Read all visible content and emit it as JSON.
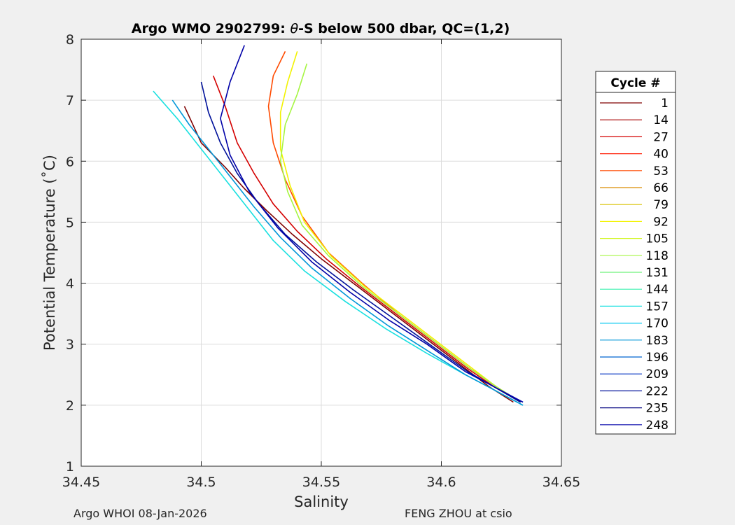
{
  "chart_data": {
    "type": "line",
    "title_prefix": "Argo WMO 2902799: ",
    "title_symbol": "θ",
    "title_suffix": "-S below 500 dbar,  QC=(1,2)",
    "xlabel": "Salinity",
    "ylabel": "Potential Temperature (˚C)",
    "xlim": [
      34.45,
      34.65
    ],
    "ylim": [
      1,
      8
    ],
    "xticks": [
      34.45,
      34.5,
      34.55,
      34.6,
      34.65
    ],
    "xtick_labels": [
      "34.45",
      "34.5",
      "34.55",
      "34.6",
      "34.65"
    ],
    "yticks": [
      1,
      2,
      3,
      4,
      5,
      6,
      7,
      8
    ],
    "ytick_labels": [
      "1",
      "2",
      "3",
      "4",
      "5",
      "6",
      "7",
      "8"
    ],
    "grid": true,
    "legend": {
      "title": "Cycle #",
      "placement": "right, outside plot",
      "entries": [
        {
          "label": "1",
          "color": "#7f0000"
        },
        {
          "label": "14",
          "color": "#a80000"
        },
        {
          "label": "27",
          "color": "#d40000"
        },
        {
          "label": "40",
          "color": "#ff1a00"
        },
        {
          "label": "53",
          "color": "#ff4a00"
        },
        {
          "label": "66",
          "color": "#d98c00"
        },
        {
          "label": "79",
          "color": "#d9c000"
        },
        {
          "label": "92",
          "color": "#f2f200"
        },
        {
          "label": "105",
          "color": "#cff51a"
        },
        {
          "label": "118",
          "color": "#a6f542"
        },
        {
          "label": "131",
          "color": "#6ef27a"
        },
        {
          "label": "144",
          "color": "#3ef0b0"
        },
        {
          "label": "157",
          "color": "#19e0e0"
        },
        {
          "label": "170",
          "color": "#00c8f0"
        },
        {
          "label": "183",
          "color": "#0096d8"
        },
        {
          "label": "196",
          "color": "#0064d0"
        },
        {
          "label": "209",
          "color": "#0030c0"
        },
        {
          "label": "222",
          "color": "#00119a"
        },
        {
          "label": "235",
          "color": "#000080"
        },
        {
          "label": "248",
          "color": "#0000a8"
        }
      ]
    },
    "series": [
      {
        "cycle_group": "1",
        "color": "#7f0000",
        "x": [
          34.493,
          34.5,
          34.51,
          34.518,
          34.527,
          34.538,
          34.55,
          34.565,
          34.58,
          34.595,
          34.61,
          34.62,
          34.63
        ],
        "y": [
          6.9,
          6.3,
          5.9,
          5.55,
          5.2,
          4.8,
          4.4,
          3.95,
          3.5,
          3.05,
          2.6,
          2.3,
          2.05
        ]
      },
      {
        "cycle_group": "27",
        "color": "#d40000",
        "x": [
          34.505,
          34.51,
          34.515,
          34.522,
          34.53,
          34.54,
          34.552,
          34.566,
          34.581,
          34.596,
          34.611,
          34.622,
          34.633
        ],
        "y": [
          7.4,
          6.9,
          6.3,
          5.8,
          5.3,
          4.85,
          4.4,
          3.95,
          3.5,
          3.05,
          2.6,
          2.3,
          2.05
        ]
      },
      {
        "cycle_group": "53",
        "color": "#ff4a00",
        "x": [
          34.535,
          34.53,
          34.528,
          34.53,
          34.535,
          34.542,
          34.553,
          34.567,
          34.582,
          34.597,
          34.612,
          34.623,
          34.633
        ],
        "y": [
          7.8,
          7.4,
          6.9,
          6.3,
          5.7,
          5.1,
          4.5,
          4.0,
          3.5,
          3.05,
          2.6,
          2.3,
          2.05
        ]
      },
      {
        "cycle_group": "92",
        "color": "#f2f200",
        "x": [
          34.54,
          34.536,
          34.533,
          34.533,
          34.537,
          34.543,
          34.554,
          34.568,
          34.583,
          34.598,
          34.613,
          34.623,
          34.633
        ],
        "y": [
          7.8,
          7.3,
          6.8,
          6.2,
          5.6,
          5.0,
          4.45,
          3.95,
          3.5,
          3.05,
          2.6,
          2.3,
          2.05
        ]
      },
      {
        "cycle_group": "118",
        "color": "#a6f542",
        "x": [
          34.544,
          34.54,
          34.535,
          34.533,
          34.536,
          34.542,
          34.553,
          34.567,
          34.582,
          34.597,
          34.612,
          34.623,
          34.633
        ],
        "y": [
          7.6,
          7.1,
          6.6,
          6.0,
          5.5,
          4.95,
          4.45,
          3.95,
          3.5,
          3.05,
          2.6,
          2.3,
          2.05
        ]
      },
      {
        "cycle_group": "157",
        "color": "#19e0e0",
        "x": [
          34.48,
          34.49,
          34.5,
          34.51,
          34.52,
          34.53,
          34.543,
          34.56,
          34.577,
          34.594,
          34.61,
          34.622,
          34.634
        ],
        "y": [
          7.15,
          6.7,
          6.2,
          5.7,
          5.2,
          4.7,
          4.2,
          3.7,
          3.25,
          2.85,
          2.5,
          2.25,
          2.0
        ]
      },
      {
        "cycle_group": "183",
        "color": "#0096d8",
        "x": [
          34.488,
          34.495,
          34.503,
          34.512,
          34.522,
          34.533,
          34.546,
          34.562,
          34.578,
          34.594,
          34.61,
          34.622,
          34.634
        ],
        "y": [
          7.0,
          6.6,
          6.2,
          5.75,
          5.25,
          4.75,
          4.25,
          3.75,
          3.3,
          2.9,
          2.5,
          2.25,
          2.0
        ]
      },
      {
        "cycle_group": "222",
        "color": "#00119a",
        "x": [
          34.5,
          34.503,
          34.508,
          34.515,
          34.524,
          34.535,
          34.548,
          34.563,
          34.579,
          34.595,
          34.611,
          34.622,
          34.633
        ],
        "y": [
          7.3,
          6.8,
          6.3,
          5.8,
          5.3,
          4.8,
          4.35,
          3.9,
          3.45,
          3.0,
          2.55,
          2.3,
          2.05
        ]
      },
      {
        "cycle_group": "248",
        "color": "#0000a8",
        "x": [
          34.518,
          34.512,
          34.508,
          34.512,
          34.52,
          34.532,
          34.546,
          34.562,
          34.578,
          34.594,
          34.61,
          34.622,
          34.634
        ],
        "y": [
          7.9,
          7.3,
          6.7,
          6.1,
          5.5,
          4.9,
          4.35,
          3.85,
          3.4,
          3.0,
          2.55,
          2.3,
          2.05
        ]
      }
    ]
  },
  "footer": {
    "left": "Argo WHOI 08-Jan-2026",
    "right": "FENG ZHOU at csio"
  }
}
